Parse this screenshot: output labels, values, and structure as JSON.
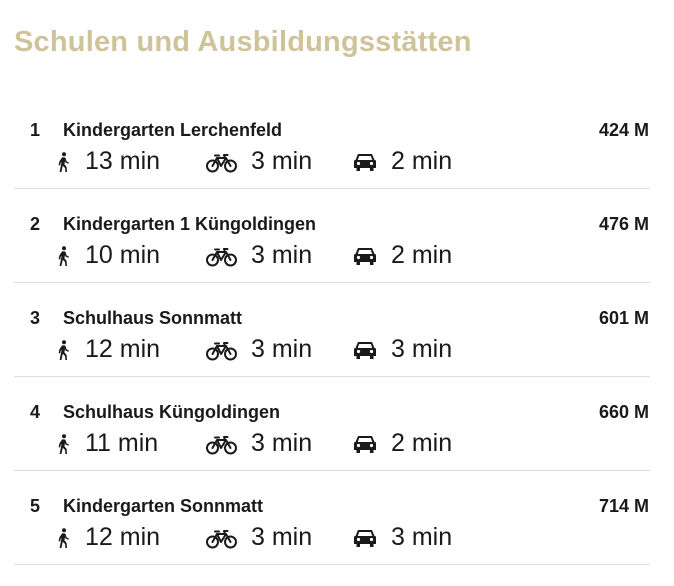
{
  "title": "Schulen und Ausbildungsstätten",
  "colors": {
    "title": "#cfc39a",
    "text": "#1a1a1a",
    "divider": "#dddddd"
  },
  "icons": {
    "walk": "walking-person-icon",
    "bike": "bicycle-icon",
    "car": "car-icon"
  },
  "items": [
    {
      "num": "1",
      "name": "Kindergarten Lerchenfeld",
      "distance": "424 M",
      "walk": "13 min",
      "bike": "3 min",
      "car": "2 min"
    },
    {
      "num": "2",
      "name": "Kindergarten 1 Küngoldingen",
      "distance": "476 M",
      "walk": "10 min",
      "bike": "3 min",
      "car": "2 min"
    },
    {
      "num": "3",
      "name": "Schulhaus Sonnmatt",
      "distance": "601 M",
      "walk": "12 min",
      "bike": "3 min",
      "car": "3 min"
    },
    {
      "num": "4",
      "name": "Schulhaus Küngoldingen",
      "distance": "660 M",
      "walk": "11 min",
      "bike": "3 min",
      "car": "2 min"
    },
    {
      "num": "5",
      "name": "Kindergarten Sonnmatt",
      "distance": "714 M",
      "walk": "12 min",
      "bike": "3 min",
      "car": "3 min"
    }
  ]
}
